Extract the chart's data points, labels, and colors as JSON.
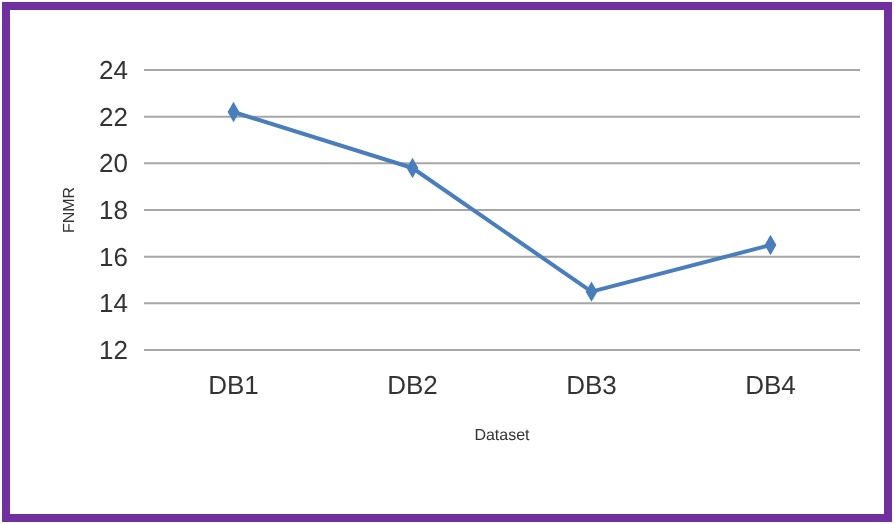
{
  "chart_data": {
    "type": "line",
    "xlabel": "Dataset",
    "ylabel": "FNMR",
    "categories": [
      "DB1",
      "DB2",
      "DB3",
      "DB4"
    ],
    "series": [
      {
        "color": "#4a7ebb",
        "values": [
          22.2,
          19.8,
          14.5,
          16.5
        ]
      }
    ],
    "ylim": [
      12,
      24
    ],
    "yticks": [
      12,
      14,
      16,
      18,
      20,
      22,
      24
    ],
    "grid": "y",
    "marker": "diamond",
    "line_style": "solid"
  }
}
